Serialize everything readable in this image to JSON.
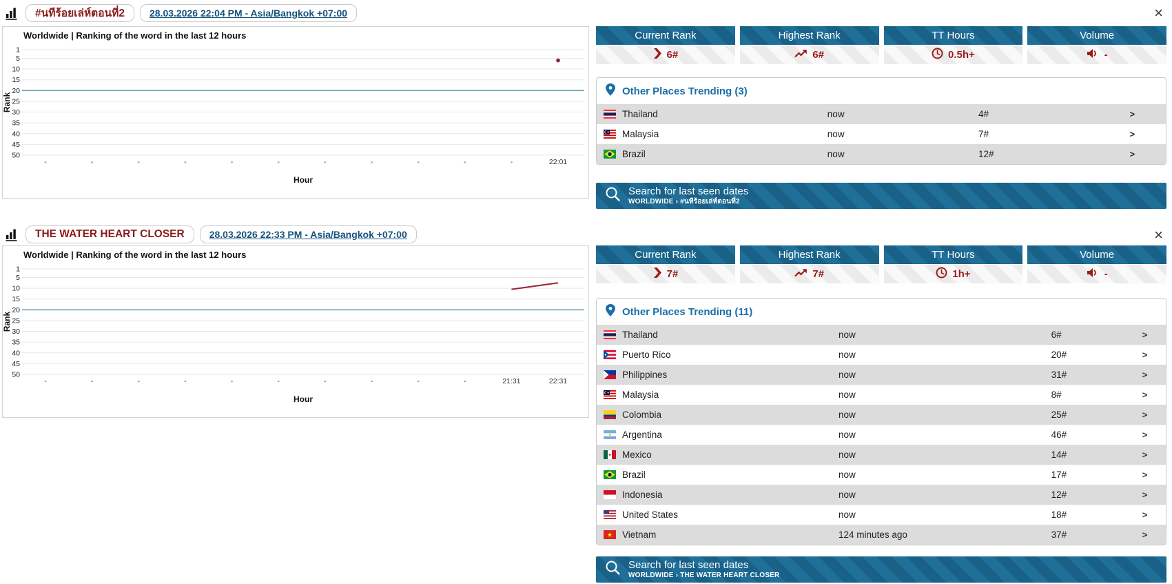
{
  "colors": {
    "accent_red": "#9e1a1a",
    "header_blue": "#1f6f99",
    "link_blue": "#16537e",
    "trending_blue": "#1a6fa8",
    "row_shade": "#dcdcdc",
    "highlight_gridline": "#6f9fb8"
  },
  "sections": [
    {
      "header": {
        "title": "#นทีร้อยเล่ห์ตอนที่2",
        "datetime": "28.03.2026 22:04 PM - Asia/Bangkok +07:00",
        "close": "×"
      },
      "chart": {
        "type": "line",
        "title": "Worldwide | Ranking of the word in the last 12 hours",
        "ylabel": "Rank",
        "xlabel": "Hour",
        "yticks": [
          1,
          5,
          10,
          15,
          20,
          25,
          30,
          35,
          40,
          45,
          50
        ],
        "highlight_gridline_rank": 20,
        "xticks": [
          "-",
          "-",
          "-",
          "-",
          "-",
          "-",
          "-",
          "-",
          "-",
          "-",
          "-",
          "22:01"
        ],
        "points": [
          {
            "x": 11,
            "rank": 6
          }
        ]
      },
      "stats": [
        {
          "label": "Current Rank",
          "icon": "current-rank-icon",
          "value": "6#"
        },
        {
          "label": "Highest Rank",
          "icon": "trend-up-icon",
          "value": "6#"
        },
        {
          "label": "TT Hours",
          "icon": "clock-icon",
          "value": "0.5h+"
        },
        {
          "label": "Volume",
          "icon": "speaker-icon",
          "value": "-"
        }
      ],
      "trending": {
        "title": "Other Places Trending (3)",
        "rows": [
          {
            "flag": "thailand",
            "country": "Thailand",
            "time": "now",
            "rank": "4#",
            "arrow": ">"
          },
          {
            "flag": "malaysia",
            "country": "Malaysia",
            "time": "now",
            "rank": "7#",
            "arrow": ">"
          },
          {
            "flag": "brazil",
            "country": "Brazil",
            "time": "now",
            "rank": "12#",
            "arrow": ">"
          }
        ]
      },
      "search": {
        "title": "Search for last seen dates",
        "path": "WORLDWIDE › #นทีร้อยเล่ห์ตอนที่2"
      }
    },
    {
      "header": {
        "title": "THE WATER HEART CLOSER",
        "datetime": "28.03.2026 22:33 PM - Asia/Bangkok +07:00",
        "close": "×"
      },
      "chart": {
        "type": "line",
        "title": "Worldwide | Ranking of the word in the last 12 hours",
        "ylabel": "Rank",
        "xlabel": "Hour",
        "yticks": [
          1,
          5,
          10,
          15,
          20,
          25,
          30,
          35,
          40,
          45,
          50
        ],
        "highlight_gridline_rank": 20,
        "xticks": [
          "-",
          "-",
          "-",
          "-",
          "-",
          "-",
          "-",
          "-",
          "-",
          "-",
          "21:31",
          "22:31"
        ],
        "points": [
          {
            "x": 10,
            "rank": 10.5
          },
          {
            "x": 11,
            "rank": 7.5
          }
        ]
      },
      "stats": [
        {
          "label": "Current Rank",
          "icon": "current-rank-icon",
          "value": "7#"
        },
        {
          "label": "Highest Rank",
          "icon": "trend-up-icon",
          "value": "7#"
        },
        {
          "label": "TT Hours",
          "icon": "clock-icon",
          "value": "1h+"
        },
        {
          "label": "Volume",
          "icon": "speaker-icon",
          "value": "-"
        }
      ],
      "trending": {
        "title": "Other Places Trending (11)",
        "rows": [
          {
            "flag": "thailand",
            "country": "Thailand",
            "time": "now",
            "rank": "6#",
            "arrow": ">"
          },
          {
            "flag": "puerto-rico",
            "country": "Puerto Rico",
            "time": "now",
            "rank": "20#",
            "arrow": ">"
          },
          {
            "flag": "philippines",
            "country": "Philippines",
            "time": "now",
            "rank": "31#",
            "arrow": ">"
          },
          {
            "flag": "malaysia",
            "country": "Malaysia",
            "time": "now",
            "rank": "8#",
            "arrow": ">"
          },
          {
            "flag": "colombia",
            "country": "Colombia",
            "time": "now",
            "rank": "25#",
            "arrow": ">"
          },
          {
            "flag": "argentina",
            "country": "Argentina",
            "time": "now",
            "rank": "46#",
            "arrow": ">"
          },
          {
            "flag": "mexico",
            "country": "Mexico",
            "time": "now",
            "rank": "14#",
            "arrow": ">"
          },
          {
            "flag": "brazil",
            "country": "Brazil",
            "time": "now",
            "rank": "17#",
            "arrow": ">"
          },
          {
            "flag": "indonesia",
            "country": "Indonesia",
            "time": "now",
            "rank": "12#",
            "arrow": ">"
          },
          {
            "flag": "united-states",
            "country": "United States",
            "time": "now",
            "rank": "18#",
            "arrow": ">"
          },
          {
            "flag": "vietnam",
            "country": "Vietnam",
            "time": "124 minutes ago",
            "rank": "37#",
            "arrow": ">"
          }
        ]
      },
      "search": {
        "title": "Search for last seen dates",
        "path": "WORLDWIDE › THE WATER HEART CLOSER"
      }
    }
  ]
}
